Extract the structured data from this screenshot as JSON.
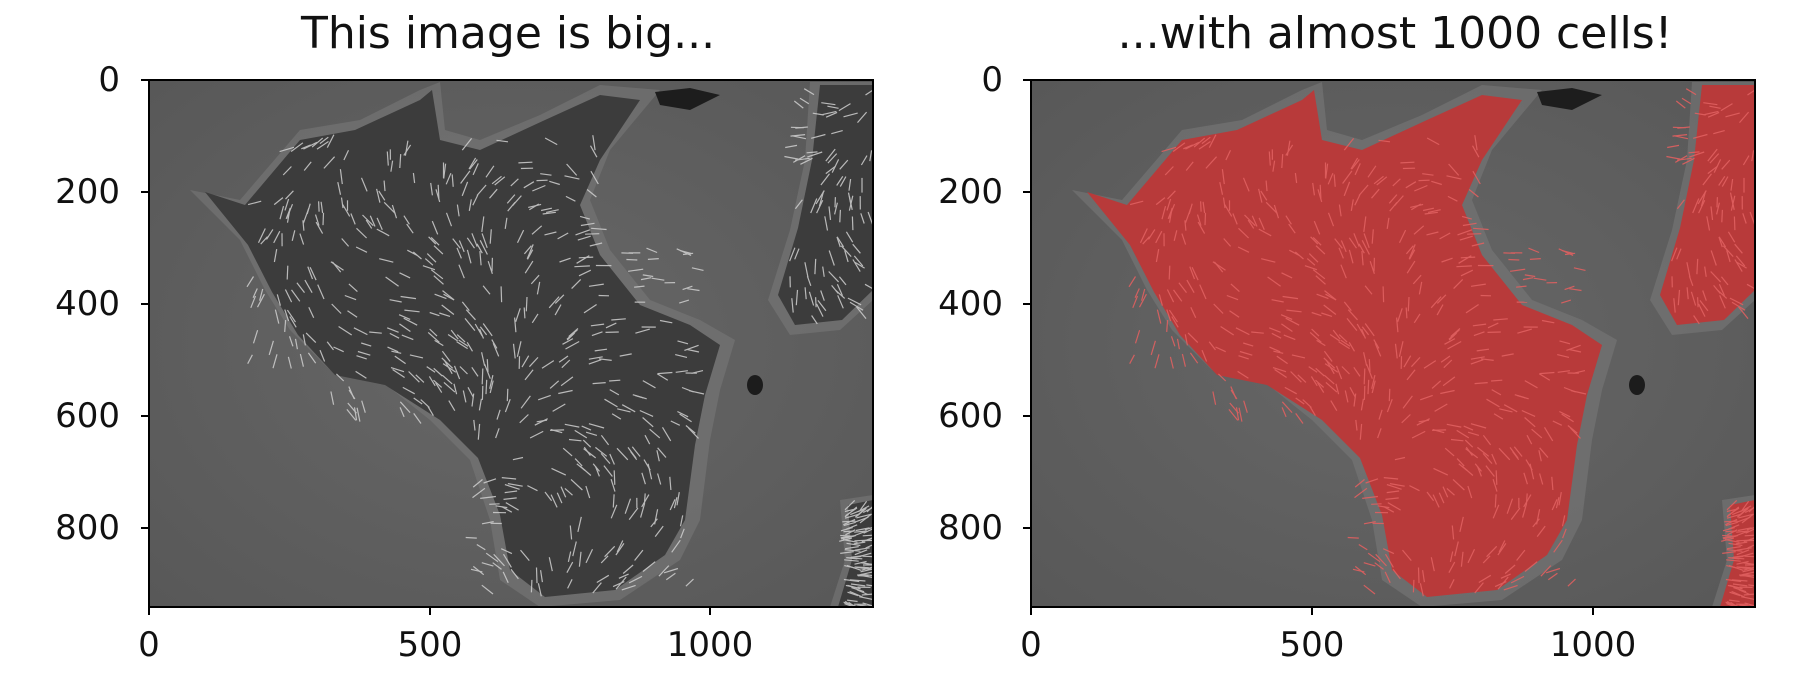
{
  "figure": {
    "panels": [
      {
        "id": "raw",
        "title": "This image is big...",
        "x_ticks": [
          "0",
          "500",
          "1000"
        ],
        "y_ticks": [
          "0",
          "200",
          "400",
          "600",
          "800"
        ],
        "overlay": false
      },
      {
        "id": "segmented",
        "title": "...with almost 1000 cells!",
        "x_ticks": [
          "0",
          "500",
          "1000"
        ],
        "y_ticks": [
          "0",
          "200",
          "400",
          "600",
          "800"
        ],
        "overlay": true
      }
    ],
    "image_extent": {
      "width": 1292,
      "height": 940
    },
    "colors": {
      "background_gray": "#5f5f5f",
      "cell_dark": "#3a3a3a",
      "cell_outline": "#cfcfcf",
      "overlay_red": "#d23a3a"
    }
  }
}
